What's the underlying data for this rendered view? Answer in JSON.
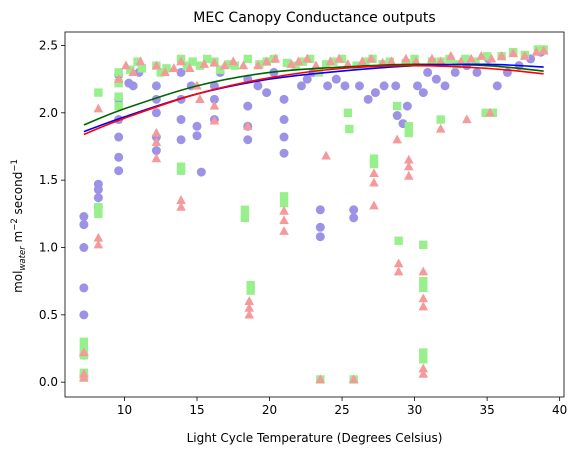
{
  "chart_data": {
    "type": "scatter",
    "title": "MEC Canopy Conductance outputs",
    "xlabel": "Light Cycle Temperature (Degrees Celsius)",
    "ylabel": {
      "prefix": "mol",
      "subscript": "water",
      "middle": " m",
      "exp1": "−2",
      "suffix": " second",
      "exp2": "−1"
    },
    "xlim": [
      5.9,
      40.3
    ],
    "ylim": [
      -0.11,
      2.6
    ],
    "xticks": [
      10,
      15,
      20,
      25,
      30,
      35,
      40
    ],
    "yticks": [
      0.0,
      0.5,
      1.0,
      1.5,
      2.0,
      2.5
    ],
    "grid": false,
    "legend": "none",
    "colors": {
      "circle": "#9d93e6",
      "square": "#98f08c",
      "triangle": "#f59a9a",
      "fit_blue": "#0000ff",
      "fit_green": "#006400",
      "fit_red": "#ff0000"
    },
    "series": [
      {
        "marker": "circle",
        "points": [
          [
            7.2,
            1.23
          ],
          [
            7.2,
            1.17
          ],
          [
            7.2,
            1.0
          ],
          [
            7.2,
            0.7
          ],
          [
            7.2,
            0.5
          ],
          [
            7.2,
            0.2
          ],
          [
            7.2,
            0.05
          ],
          [
            8.2,
            1.47
          ],
          [
            8.2,
            1.43
          ],
          [
            8.2,
            1.37
          ],
          [
            8.2,
            1.3
          ],
          [
            9.6,
            2.28
          ],
          [
            9.6,
            2.1
          ],
          [
            9.6,
            1.95
          ],
          [
            9.6,
            1.82
          ],
          [
            9.6,
            1.67
          ],
          [
            9.6,
            1.57
          ],
          [
            10.3,
            2.22
          ],
          [
            10.6,
            2.2
          ],
          [
            11.0,
            2.3
          ],
          [
            12.2,
            2.2
          ],
          [
            12.2,
            2.1
          ],
          [
            12.2,
            2.0
          ],
          [
            12.2,
            1.82
          ],
          [
            12.2,
            1.72
          ],
          [
            13.9,
            2.3
          ],
          [
            13.9,
            2.1
          ],
          [
            13.9,
            1.95
          ],
          [
            13.9,
            1.8
          ],
          [
            14.6,
            2.2
          ],
          [
            15.0,
            1.9
          ],
          [
            15.0,
            1.83
          ],
          [
            15.3,
            1.56
          ],
          [
            16.2,
            2.2
          ],
          [
            16.2,
            2.1
          ],
          [
            16.2,
            1.95
          ],
          [
            16.6,
            2.3
          ],
          [
            18.5,
            2.25
          ],
          [
            18.5,
            2.05
          ],
          [
            18.5,
            1.9
          ],
          [
            18.5,
            1.8
          ],
          [
            19.2,
            2.2
          ],
          [
            19.8,
            2.15
          ],
          [
            20.3,
            2.3
          ],
          [
            21.0,
            2.1
          ],
          [
            21.0,
            1.95
          ],
          [
            21.0,
            1.82
          ],
          [
            21.0,
            1.7
          ],
          [
            22.2,
            2.2
          ],
          [
            22.6,
            2.25
          ],
          [
            23.0,
            2.3
          ],
          [
            23.5,
            1.28
          ],
          [
            23.5,
            1.15
          ],
          [
            23.5,
            1.08
          ],
          [
            24.0,
            2.2
          ],
          [
            24.6,
            2.25
          ],
          [
            25.2,
            2.2
          ],
          [
            25.8,
            1.28
          ],
          [
            25.8,
            1.22
          ],
          [
            26.2,
            2.2
          ],
          [
            26.8,
            2.1
          ],
          [
            27.3,
            2.15
          ],
          [
            27.9,
            2.2
          ],
          [
            28.7,
            2.2
          ],
          [
            28.8,
            1.98
          ],
          [
            29.2,
            1.92
          ],
          [
            29.5,
            2.05
          ],
          [
            30.2,
            2.2
          ],
          [
            30.6,
            2.15
          ],
          [
            30.9,
            2.3
          ],
          [
            31.5,
            2.25
          ],
          [
            32.1,
            2.2
          ],
          [
            32.8,
            2.3
          ],
          [
            33.6,
            2.35
          ],
          [
            34.3,
            2.3
          ],
          [
            35.1,
            2.4
          ],
          [
            35.7,
            2.2
          ],
          [
            36.4,
            2.3
          ],
          [
            37.2,
            2.35
          ],
          [
            38.0,
            2.4
          ],
          [
            38.7,
            2.45
          ]
        ]
      },
      {
        "marker": "square",
        "points": [
          [
            7.2,
            0.3
          ],
          [
            7.2,
            0.24
          ],
          [
            7.2,
            0.2
          ],
          [
            7.2,
            0.07
          ],
          [
            7.2,
            0.04
          ],
          [
            8.2,
            2.15
          ],
          [
            8.2,
            1.3
          ],
          [
            8.2,
            1.25
          ],
          [
            9.6,
            2.3
          ],
          [
            9.6,
            2.22
          ],
          [
            9.6,
            2.12
          ],
          [
            9.6,
            2.05
          ],
          [
            10.4,
            2.32
          ],
          [
            10.9,
            2.38
          ],
          [
            11.2,
            2.33
          ],
          [
            12.2,
            2.35
          ],
          [
            12.5,
            2.3
          ],
          [
            12.9,
            2.33
          ],
          [
            13.9,
            2.4
          ],
          [
            13.9,
            1.6
          ],
          [
            13.9,
            1.57
          ],
          [
            14.3,
            2.35
          ],
          [
            14.7,
            2.38
          ],
          [
            15.2,
            2.35
          ],
          [
            15.7,
            2.4
          ],
          [
            16.2,
            2.38
          ],
          [
            16.6,
            2.32
          ],
          [
            17.2,
            2.36
          ],
          [
            17.6,
            2.35
          ],
          [
            18.5,
            2.4
          ],
          [
            18.3,
            1.28
          ],
          [
            18.3,
            1.22
          ],
          [
            18.7,
            0.72
          ],
          [
            18.7,
            0.68
          ],
          [
            19.3,
            2.36
          ],
          [
            19.8,
            2.38
          ],
          [
            20.3,
            2.4
          ],
          [
            21.0,
            1.38
          ],
          [
            21.0,
            1.33
          ],
          [
            21.2,
            2.37
          ],
          [
            21.8,
            2.35
          ],
          [
            22.3,
            2.38
          ],
          [
            22.8,
            2.4
          ],
          [
            23.4,
            2.3
          ],
          [
            23.5,
            0.02
          ],
          [
            23.9,
            2.36
          ],
          [
            24.4,
            2.38
          ],
          [
            25.0,
            2.4
          ],
          [
            25.4,
            2.0
          ],
          [
            25.5,
            1.88
          ],
          [
            25.8,
            0.02
          ],
          [
            26.0,
            2.35
          ],
          [
            26.6,
            2.38
          ],
          [
            27.1,
            2.4
          ],
          [
            27.2,
            1.66
          ],
          [
            27.2,
            1.62
          ],
          [
            27.8,
            2.36
          ],
          [
            28.3,
            2.38
          ],
          [
            28.8,
            2.05
          ],
          [
            28.9,
            1.05
          ],
          [
            29.4,
            2.37
          ],
          [
            29.6,
            1.9
          ],
          [
            29.6,
            1.85
          ],
          [
            30.0,
            2.4
          ],
          [
            30.6,
            1.02
          ],
          [
            30.6,
            0.75
          ],
          [
            30.6,
            0.7
          ],
          [
            30.6,
            0.22
          ],
          [
            30.6,
            0.17
          ],
          [
            31.2,
            2.38
          ],
          [
            31.8,
            1.95
          ],
          [
            31.8,
            2.38
          ],
          [
            32.4,
            2.4
          ],
          [
            32.9,
            2.36
          ],
          [
            33.5,
            2.4
          ],
          [
            34.2,
            2.38
          ],
          [
            34.9,
            2.0
          ],
          [
            35.0,
            2.42
          ],
          [
            35.4,
            2.0
          ],
          [
            36.0,
            2.42
          ],
          [
            36.8,
            2.45
          ],
          [
            37.6,
            2.43
          ],
          [
            38.5,
            2.47
          ],
          [
            38.9,
            2.47
          ]
        ]
      },
      {
        "marker": "triangle",
        "points": [
          [
            7.2,
            0.22
          ],
          [
            7.2,
            0.06
          ],
          [
            7.2,
            0.03
          ],
          [
            8.2,
            2.03
          ],
          [
            8.2,
            1.07
          ],
          [
            8.2,
            1.02
          ],
          [
            9.6,
            2.25
          ],
          [
            10.1,
            2.35
          ],
          [
            10.6,
            2.3
          ],
          [
            11.1,
            2.38
          ],
          [
            12.2,
            2.35
          ],
          [
            12.2,
            1.85
          ],
          [
            12.2,
            1.78
          ],
          [
            12.2,
            1.66
          ],
          [
            12.8,
            2.3
          ],
          [
            13.4,
            2.33
          ],
          [
            13.9,
            2.38
          ],
          [
            13.9,
            1.35
          ],
          [
            13.9,
            1.3
          ],
          [
            14.5,
            2.33
          ],
          [
            15.0,
            2.2
          ],
          [
            15.2,
            2.1
          ],
          [
            15.5,
            2.36
          ],
          [
            16.2,
            2.37
          ],
          [
            16.2,
            2.05
          ],
          [
            16.2,
            1.94
          ],
          [
            16.9,
            2.35
          ],
          [
            17.5,
            2.38
          ],
          [
            18.2,
            2.35
          ],
          [
            18.5,
            1.9
          ],
          [
            18.6,
            0.6
          ],
          [
            18.6,
            0.55
          ],
          [
            18.6,
            0.5
          ],
          [
            19.2,
            2.35
          ],
          [
            19.8,
            2.38
          ],
          [
            20.4,
            2.4
          ],
          [
            21.0,
            1.27
          ],
          [
            21.0,
            1.2
          ],
          [
            21.0,
            1.12
          ],
          [
            21.5,
            2.36
          ],
          [
            22.0,
            2.38
          ],
          [
            22.6,
            2.4
          ],
          [
            23.2,
            2.35
          ],
          [
            23.5,
            0.02
          ],
          [
            23.9,
            1.68
          ],
          [
            24.2,
            2.38
          ],
          [
            24.8,
            2.4
          ],
          [
            25.4,
            2.36
          ],
          [
            25.8,
            0.02
          ],
          [
            26.4,
            2.38
          ],
          [
            27.0,
            2.4
          ],
          [
            27.2,
            1.55
          ],
          [
            27.2,
            1.48
          ],
          [
            27.2,
            1.31
          ],
          [
            27.8,
            2.37
          ],
          [
            28.4,
            2.38
          ],
          [
            28.8,
            1.8
          ],
          [
            28.9,
            0.88
          ],
          [
            28.9,
            0.82
          ],
          [
            29.4,
            2.4
          ],
          [
            29.6,
            1.65
          ],
          [
            29.6,
            1.6
          ],
          [
            29.6,
            1.53
          ],
          [
            30.1,
            2.38
          ],
          [
            30.6,
            0.82
          ],
          [
            30.6,
            0.62
          ],
          [
            30.6,
            0.56
          ],
          [
            30.6,
            0.1
          ],
          [
            30.6,
            0.06
          ],
          [
            31.2,
            2.4
          ],
          [
            31.8,
            1.88
          ],
          [
            31.8,
            2.38
          ],
          [
            32.5,
            2.42
          ],
          [
            33.2,
            2.38
          ],
          [
            33.6,
            1.95
          ],
          [
            33.9,
            2.4
          ],
          [
            34.6,
            2.42
          ],
          [
            35.2,
            2.0
          ],
          [
            35.3,
            2.4
          ],
          [
            36.0,
            2.42
          ],
          [
            36.8,
            2.44
          ],
          [
            37.6,
            2.42
          ],
          [
            38.4,
            2.45
          ],
          [
            38.9,
            2.46
          ]
        ]
      }
    ],
    "fits": [
      {
        "color_key": "fit_green",
        "points": [
          [
            7.2,
            1.91
          ],
          [
            10,
            2.03
          ],
          [
            15,
            2.2
          ],
          [
            20,
            2.3
          ],
          [
            25,
            2.34
          ],
          [
            30,
            2.36
          ],
          [
            35,
            2.35
          ],
          [
            38.9,
            2.31
          ]
        ]
      },
      {
        "color_key": "fit_blue",
        "points": [
          [
            7.2,
            1.86
          ],
          [
            10,
            1.97
          ],
          [
            15,
            2.14
          ],
          [
            20,
            2.25
          ],
          [
            25,
            2.31
          ],
          [
            30,
            2.35
          ],
          [
            35,
            2.36
          ],
          [
            38.9,
            2.34
          ]
        ]
      },
      {
        "color_key": "fit_red",
        "points": [
          [
            7.2,
            1.84
          ],
          [
            10,
            1.96
          ],
          [
            15,
            2.14
          ],
          [
            20,
            2.26
          ],
          [
            25,
            2.33
          ],
          [
            30,
            2.35
          ],
          [
            35,
            2.33
          ],
          [
            38.9,
            2.29
          ]
        ]
      }
    ]
  }
}
